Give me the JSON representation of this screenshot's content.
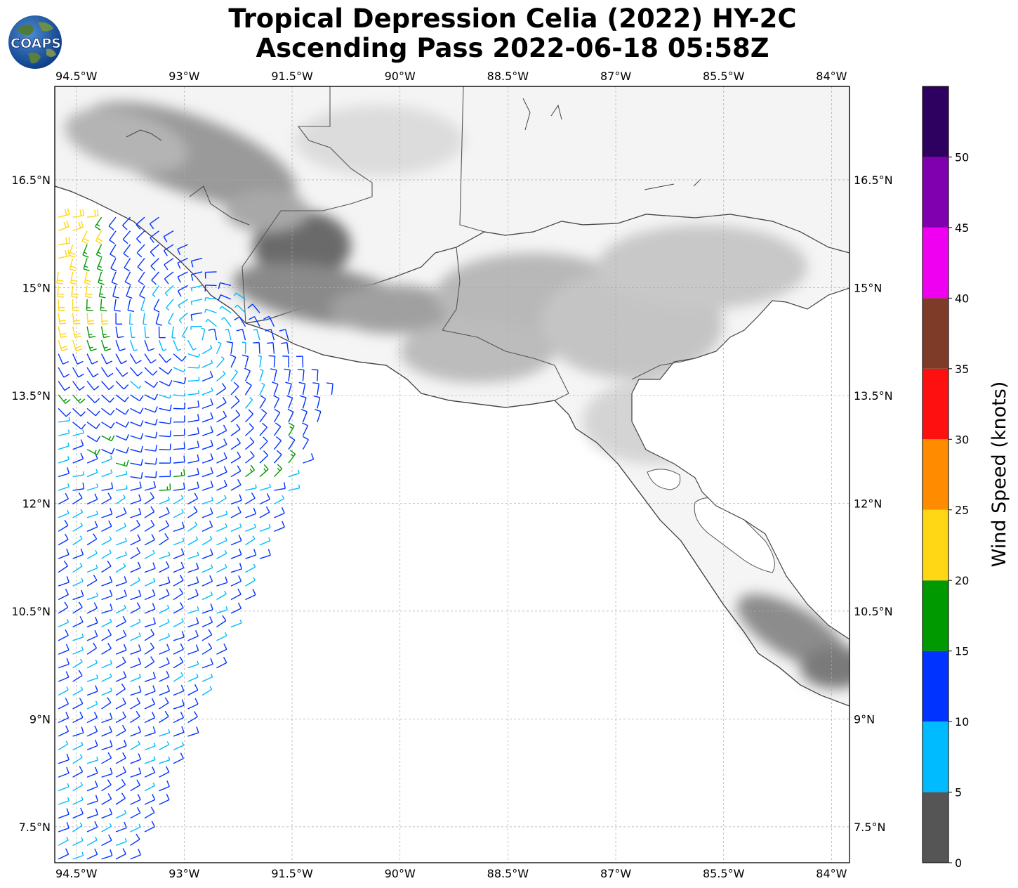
{
  "title": {
    "line1": "Tropical Depression Celia (2022) HY-2C",
    "line2": "Ascending Pass 2022-06-18 05:58Z"
  },
  "logo": {
    "text": "COAPS",
    "icon": "globe-logo-icon"
  },
  "map": {
    "lon_range": [
      -94.8,
      -83.75
    ],
    "lat_range": [
      7.0,
      17.8
    ],
    "lon_ticks": [
      {
        "value": -94.5,
        "label": "94.5°W"
      },
      {
        "value": -93.0,
        "label": "93°W"
      },
      {
        "value": -91.5,
        "label": "91.5°W"
      },
      {
        "value": -90.0,
        "label": "90°W"
      },
      {
        "value": -88.5,
        "label": "88.5°W"
      },
      {
        "value": -87.0,
        "label": "87°W"
      },
      {
        "value": -85.5,
        "label": "85.5°W"
      },
      {
        "value": -84.0,
        "label": "84°W"
      }
    ],
    "lat_ticks": [
      {
        "value": 16.5,
        "label": "16.5°N"
      },
      {
        "value": 15.0,
        "label": "15°N"
      },
      {
        "value": 13.5,
        "label": "13.5°N"
      },
      {
        "value": 12.0,
        "label": "12°N"
      },
      {
        "value": 10.5,
        "label": "10.5°N"
      },
      {
        "value": 9.0,
        "label": "9°N"
      },
      {
        "value": 7.5,
        "label": "7.5°N"
      }
    ],
    "grid": true
  },
  "colorbar": {
    "title": "Wind Speed (knots)",
    "range": [
      0,
      55
    ],
    "segments": [
      {
        "from": 0,
        "to": 5,
        "color": "#555555"
      },
      {
        "from": 5,
        "to": 10,
        "color": "#00bbff"
      },
      {
        "from": 10,
        "to": 15,
        "color": "#0033ff"
      },
      {
        "from": 15,
        "to": 20,
        "color": "#009900"
      },
      {
        "from": 20,
        "to": 25,
        "color": "#ffd714"
      },
      {
        "from": 25,
        "to": 30,
        "color": "#ff8c00"
      },
      {
        "from": 30,
        "to": 35,
        "color": "#ff1010"
      },
      {
        "from": 35,
        "to": 40,
        "color": "#7e3b28"
      },
      {
        "from": 40,
        "to": 45,
        "color": "#f000f0"
      },
      {
        "from": 45,
        "to": 50,
        "color": "#8000b0"
      },
      {
        "from": 50,
        "to": 55,
        "color": "#2e0060"
      }
    ],
    "tick_labels": [
      "0",
      "5",
      "10",
      "15",
      "20",
      "25",
      "30",
      "35",
      "40",
      "45",
      "50"
    ]
  }
}
